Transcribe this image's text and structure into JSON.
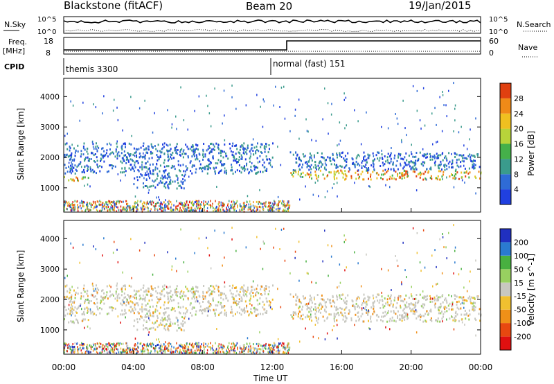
{
  "header": {
    "title": "Blackstone (fitACF)",
    "beam": "Beam 20",
    "date": "19/Jan/2015"
  },
  "panels": {
    "nsky": {
      "label": "N.Sky",
      "tick_top": "10^5",
      "tick_bottom": "10^0",
      "right_tick_top": "10^5",
      "right_tick_bottom": "10^0",
      "right_label": "N.Search"
    },
    "freq": {
      "label_line1": "Freq.",
      "label_line2": "[MHz]",
      "tick_top": "18",
      "tick_bottom": "8",
      "right_tick_top": "60",
      "right_tick_bottom": "0",
      "right_label": "Nave"
    },
    "cpid": {
      "label": "CPID",
      "mode1": "themis 3300",
      "mode2": "normal (fast) 151"
    }
  },
  "colors": {
    "power": [
      "#2040e0",
      "#2f6bd6",
      "#3a9b8c",
      "#45b04a",
      "#b8d43a",
      "#f0c020",
      "#f08a18",
      "#e04010",
      "#e01010"
    ],
    "velocity": [
      "#2030c0",
      "#2a7ad0",
      "#48b040",
      "#98d060",
      "#c8c8c0",
      "#f0c030",
      "#f09018",
      "#e84810",
      "#e01010"
    ],
    "fill_gray": "#c8c8c0"
  },
  "chart_data": [
    {
      "type": "heatmap",
      "name": "power",
      "ylabel": "Slant Range [km]",
      "yticks": [
        "1000",
        "2000",
        "3000",
        "4000"
      ],
      "ylim": [
        200,
        4600
      ],
      "colorbar_label": "Power [dB]",
      "colorbar_ticks": [
        "4",
        "8",
        "12",
        "16",
        "20",
        "24",
        "28"
      ],
      "clim": [
        0,
        32
      ],
      "xlim_hours": [
        0,
        24
      ],
      "echo_bands": [
        {
          "t0": 0.0,
          "t1": 1.5,
          "r0": 1200,
          "r1": 1400,
          "level": "high"
        },
        {
          "t0": 0.0,
          "t1": 12.0,
          "r0": 1500,
          "r1": 2500,
          "level": "low"
        },
        {
          "t0": 4.0,
          "t1": 7.0,
          "r0": 1000,
          "r1": 1500,
          "level": "low"
        },
        {
          "t0": 13.0,
          "t1": 24.0,
          "r0": 1300,
          "r1": 1600,
          "level": "high"
        },
        {
          "t0": 13.0,
          "t1": 24.0,
          "r0": 1600,
          "r1": 2200,
          "level": "low"
        }
      ]
    },
    {
      "type": "heatmap",
      "name": "velocity",
      "ylabel": "Slant Range [km]",
      "yticks": [
        "1000",
        "2000",
        "3000",
        "4000"
      ],
      "ylim": [
        200,
        4600
      ],
      "colorbar_label": "Velocity [m s^-1]",
      "colorbar_ticks": [
        "200",
        "100",
        "50",
        "15",
        "-15",
        "-50",
        "-100",
        "-200"
      ],
      "clim": [
        -250,
        250
      ],
      "xlabel": "Time UT",
      "xticks": [
        "00:00",
        "04:00",
        "08:00",
        "12:00",
        "16:00",
        "20:00",
        "00:00"
      ],
      "xlim_hours": [
        0,
        24
      ]
    }
  ]
}
